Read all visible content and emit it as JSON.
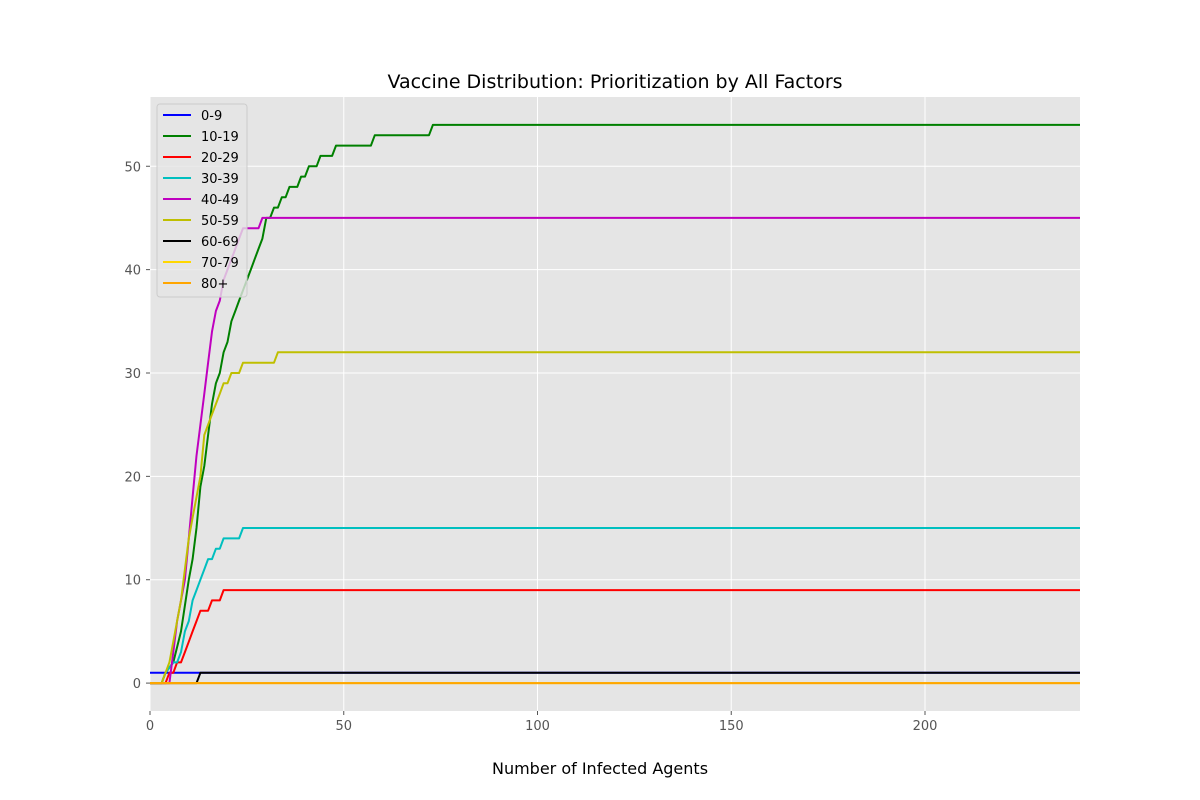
{
  "chart_data": {
    "type": "line",
    "title": "Vaccine Distribution: Prioritization by All Factors",
    "xlabel": "Number of Infected Agents",
    "ylabel": "",
    "xlim": [
      0,
      240
    ],
    "ylim": [
      -2.7,
      56.7
    ],
    "x_ticks": [
      0,
      50,
      100,
      150,
      200
    ],
    "y_ticks": [
      0,
      10,
      20,
      30,
      40,
      50
    ],
    "grid": true,
    "background": "#e5e5e5",
    "legend_position": "upper-left",
    "series": [
      {
        "name": "0-9",
        "color": "#0000ff",
        "points": [
          [
            0,
            1
          ],
          [
            240,
            1
          ]
        ]
      },
      {
        "name": "10-19",
        "color": "#008000",
        "points": [
          [
            0,
            0
          ],
          [
            3,
            0
          ],
          [
            4,
            1
          ],
          [
            6,
            2
          ],
          [
            8,
            5
          ],
          [
            10,
            10
          ],
          [
            11,
            12
          ],
          [
            12,
            15
          ],
          [
            13,
            19
          ],
          [
            14,
            21
          ],
          [
            15,
            24
          ],
          [
            16,
            27
          ],
          [
            17,
            29
          ],
          [
            18,
            30
          ],
          [
            19,
            32
          ],
          [
            20,
            33
          ],
          [
            21,
            35
          ],
          [
            22,
            36
          ],
          [
            23,
            37
          ],
          [
            24,
            38
          ],
          [
            25,
            39
          ],
          [
            26,
            40
          ],
          [
            27,
            41
          ],
          [
            28,
            42
          ],
          [
            29,
            43
          ],
          [
            30,
            45
          ],
          [
            31,
            45
          ],
          [
            32,
            46
          ],
          [
            33,
            46
          ],
          [
            34,
            47
          ],
          [
            35,
            47
          ],
          [
            36,
            48
          ],
          [
            38,
            48
          ],
          [
            39,
            49
          ],
          [
            40,
            49
          ],
          [
            41,
            50
          ],
          [
            43,
            50
          ],
          [
            44,
            51
          ],
          [
            47,
            51
          ],
          [
            48,
            52
          ],
          [
            57,
            52
          ],
          [
            58,
            53
          ],
          [
            72,
            53
          ],
          [
            73,
            54
          ],
          [
            240,
            54
          ]
        ]
      },
      {
        "name": "20-29",
        "color": "#ff0000",
        "points": [
          [
            0,
            0
          ],
          [
            4,
            0
          ],
          [
            5,
            1
          ],
          [
            6,
            1
          ],
          [
            7,
            2
          ],
          [
            8,
            2
          ],
          [
            9,
            3
          ],
          [
            10,
            4
          ],
          [
            11,
            5
          ],
          [
            12,
            6
          ],
          [
            13,
            7
          ],
          [
            15,
            7
          ],
          [
            16,
            8
          ],
          [
            18,
            8
          ],
          [
            19,
            9
          ],
          [
            240,
            9
          ]
        ]
      },
      {
        "name": "30-39",
        "color": "#00bfbf",
        "points": [
          [
            0,
            0
          ],
          [
            3,
            0
          ],
          [
            4,
            1
          ],
          [
            6,
            2
          ],
          [
            7,
            2
          ],
          [
            8,
            3
          ],
          [
            9,
            5
          ],
          [
            10,
            6
          ],
          [
            11,
            8
          ],
          [
            12,
            9
          ],
          [
            13,
            10
          ],
          [
            14,
            11
          ],
          [
            15,
            12
          ],
          [
            16,
            12
          ],
          [
            17,
            13
          ],
          [
            18,
            13
          ],
          [
            19,
            14
          ],
          [
            23,
            14
          ],
          [
            24,
            15
          ],
          [
            240,
            15
          ]
        ]
      },
      {
        "name": "40-49",
        "color": "#bf00bf",
        "points": [
          [
            0,
            0
          ],
          [
            5,
            0
          ],
          [
            6,
            3
          ],
          [
            7,
            6
          ],
          [
            8,
            8
          ],
          [
            9,
            10
          ],
          [
            10,
            14
          ],
          [
            11,
            18
          ],
          [
            12,
            22
          ],
          [
            13,
            25
          ],
          [
            14,
            28
          ],
          [
            15,
            31
          ],
          [
            16,
            34
          ],
          [
            17,
            36
          ],
          [
            18,
            37
          ],
          [
            19,
            39
          ],
          [
            20,
            40
          ],
          [
            21,
            41
          ],
          [
            22,
            42
          ],
          [
            23,
            43
          ],
          [
            24,
            44
          ],
          [
            28,
            44
          ],
          [
            29,
            45
          ],
          [
            240,
            45
          ]
        ]
      },
      {
        "name": "50-59",
        "color": "#bfbf00",
        "points": [
          [
            0,
            0
          ],
          [
            3,
            0
          ],
          [
            4,
            1
          ],
          [
            5,
            2
          ],
          [
            6,
            4
          ],
          [
            7,
            6
          ],
          [
            8,
            8
          ],
          [
            9,
            11
          ],
          [
            10,
            14
          ],
          [
            11,
            16
          ],
          [
            12,
            18
          ],
          [
            13,
            20
          ],
          [
            14,
            24
          ],
          [
            15,
            25
          ],
          [
            16,
            26
          ],
          [
            17,
            27
          ],
          [
            18,
            28
          ],
          [
            19,
            29
          ],
          [
            20,
            29
          ],
          [
            21,
            30
          ],
          [
            23,
            30
          ],
          [
            24,
            31
          ],
          [
            32,
            31
          ],
          [
            33,
            32
          ],
          [
            240,
            32
          ]
        ]
      },
      {
        "name": "60-69",
        "color": "#000000",
        "points": [
          [
            0,
            0
          ],
          [
            12,
            0
          ],
          [
            13,
            1
          ],
          [
            240,
            1
          ]
        ]
      },
      {
        "name": "70-79",
        "color": "#ffd700",
        "points": [
          [
            0,
            0
          ],
          [
            240,
            0
          ]
        ]
      },
      {
        "name": "80+",
        "color": "#ffa500",
        "points": [
          [
            0,
            0
          ],
          [
            240,
            0
          ]
        ]
      }
    ]
  }
}
